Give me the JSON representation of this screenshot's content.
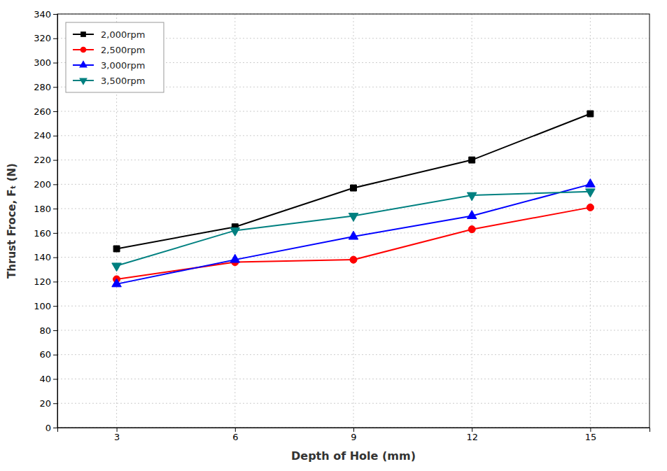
{
  "chart_data": {
    "type": "line",
    "x": [
      3,
      6,
      9,
      12,
      15
    ],
    "series": [
      {
        "name": "2,000rpm",
        "color": "#000000",
        "marker": "square",
        "line_style": "solid",
        "values": [
          147,
          165,
          197,
          220,
          258
        ]
      },
      {
        "name": "2,500rpm",
        "color": "#ff0000",
        "marker": "circle",
        "line_style": "solid",
        "values": [
          122,
          136,
          138,
          163,
          181
        ]
      },
      {
        "name": "3,000rpm",
        "color": "#0000ff",
        "marker": "triangle-up",
        "line_style": "solid",
        "values": [
          118,
          138,
          157,
          174,
          200
        ]
      },
      {
        "name": "3,500rpm",
        "color": "#008080",
        "marker": "triangle-down",
        "line_style": "solid",
        "values": [
          133,
          162,
          174,
          191,
          194
        ]
      }
    ],
    "x_label": "Depth of Hole (mm)",
    "y_label": "Thrust Froce, Fₜ (N)",
    "xlim": [
      1.5,
      16.5
    ],
    "ylim": [
      0,
      340
    ],
    "xticks": [
      3,
      6,
      9,
      12,
      15
    ],
    "yticks": [
      0,
      20,
      40,
      60,
      80,
      100,
      120,
      140,
      160,
      180,
      200,
      220,
      240,
      260,
      280,
      300,
      320,
      340
    ],
    "grid": true,
    "legend": "upper left"
  }
}
